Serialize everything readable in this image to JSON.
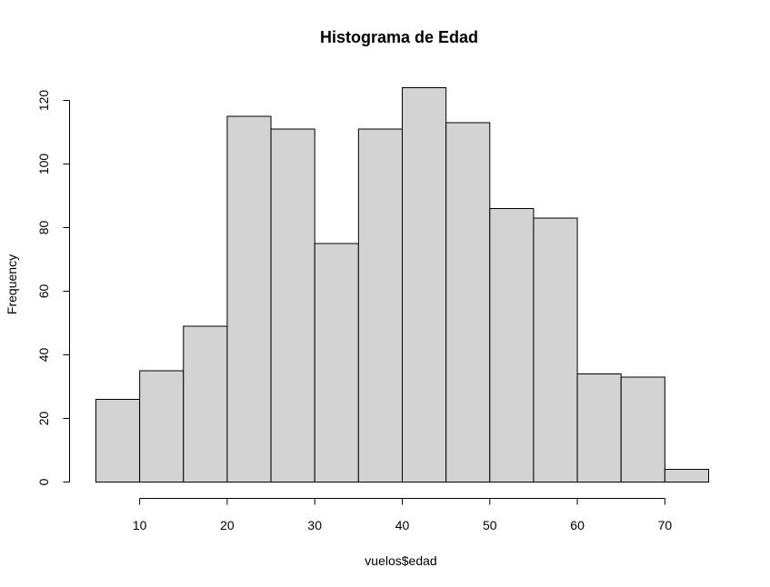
{
  "chart_data": {
    "type": "bar",
    "title": "Histograma de Edad",
    "xlabel": "vuelos$edad",
    "ylabel": "Frequency",
    "bins": [
      {
        "start": 5,
        "end": 10,
        "count": 26
      },
      {
        "start": 10,
        "end": 15,
        "count": 35
      },
      {
        "start": 15,
        "end": 20,
        "count": 49
      },
      {
        "start": 20,
        "end": 25,
        "count": 115
      },
      {
        "start": 25,
        "end": 30,
        "count": 111
      },
      {
        "start": 30,
        "end": 35,
        "count": 75
      },
      {
        "start": 35,
        "end": 40,
        "count": 111
      },
      {
        "start": 40,
        "end": 45,
        "count": 124
      },
      {
        "start": 45,
        "end": 50,
        "count": 113
      },
      {
        "start": 50,
        "end": 55,
        "count": 86
      },
      {
        "start": 55,
        "end": 60,
        "count": 83
      },
      {
        "start": 60,
        "end": 65,
        "count": 34
      },
      {
        "start": 65,
        "end": 70,
        "count": 33
      },
      {
        "start": 70,
        "end": 75,
        "count": 4
      }
    ],
    "xticks": [
      10,
      20,
      30,
      40,
      50,
      60,
      70
    ],
    "yticks": [
      0,
      20,
      40,
      60,
      80,
      100,
      120
    ],
    "xlim": [
      5,
      75
    ],
    "ylim": [
      0,
      124
    ],
    "grid": false,
    "bar_color": "#d3d3d3",
    "edge_color": "#000000"
  }
}
